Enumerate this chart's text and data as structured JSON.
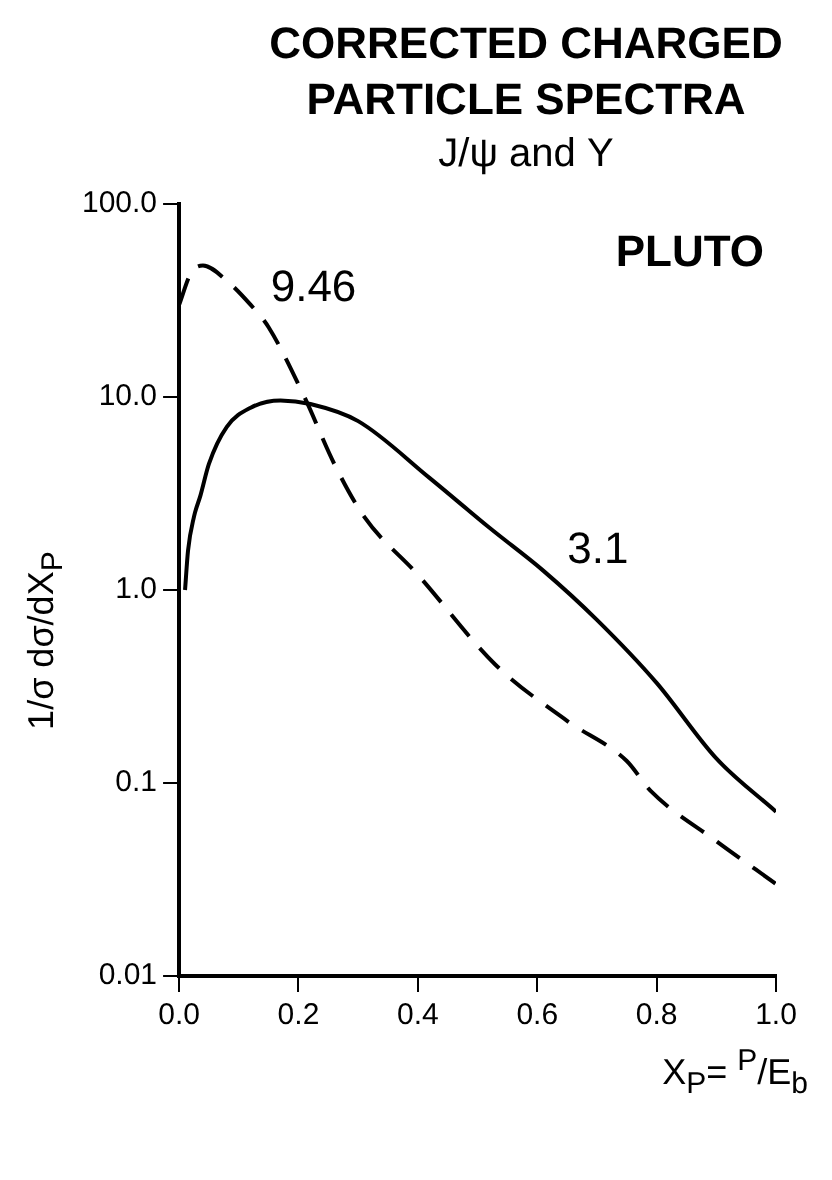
{
  "chart_data": {
    "type": "line",
    "title": "CORRECTED CHARGED PARTICLE SPECTRA",
    "subtitle": "J/ψ and Υ",
    "xlabel": "X$_{P}$= $^{P}$/E$_{b}$",
    "ylabel": "1/σ dσ/dX$_{P}$",
    "series": [
      {
        "name": "3.1",
        "color": "#000000",
        "line_style": "solid",
        "x": [
          0.01,
          0.015,
          0.025,
          0.036,
          0.05,
          0.08,
          0.12,
          0.17,
          0.22,
          0.3,
          0.42,
          0.52,
          0.61,
          0.7,
          0.8,
          0.9,
          1.0
        ],
        "values": [
          1.0,
          1.6,
          2.4,
          3.1,
          4.5,
          7.0,
          8.8,
          9.6,
          9.2,
          7.5,
          3.8,
          2.1,
          1.26,
          0.7,
          0.33,
          0.134,
          0.071
        ]
      },
      {
        "name": "9.46",
        "color": "#000000",
        "line_style": "dashed",
        "x": [
          0.0,
          0.02,
          0.04,
          0.08,
          0.12,
          0.15,
          0.21,
          0.26,
          0.31,
          0.4,
          0.53,
          0.65,
          0.75,
          0.79,
          0.9,
          1.0
        ],
        "values": [
          30,
          44,
          48,
          40,
          30,
          23,
          10,
          4.5,
          2.4,
          1.2,
          0.41,
          0.21,
          0.13,
          0.091,
          0.05,
          0.03
        ]
      }
    ],
    "xlim": [
      0,
      1
    ],
    "xticks": [
      {
        "value": 0,
        "label": "0.0"
      },
      0.2,
      0.4,
      0.6,
      0.8,
      {
        "value": 1,
        "label": "1.0"
      }
    ],
    "ylim": [
      0.01,
      100
    ],
    "yticks": [
      0.01,
      0.1,
      {
        "value": 1,
        "label": "1.0"
      },
      {
        "value": 10,
        "label": "10.0"
      },
      {
        "value": 100,
        "label": "100.0"
      }
    ],
    "log": "y",
    "grid": false,
    "legend": false,
    "annotations": [
      "PLUTO"
    ]
  }
}
